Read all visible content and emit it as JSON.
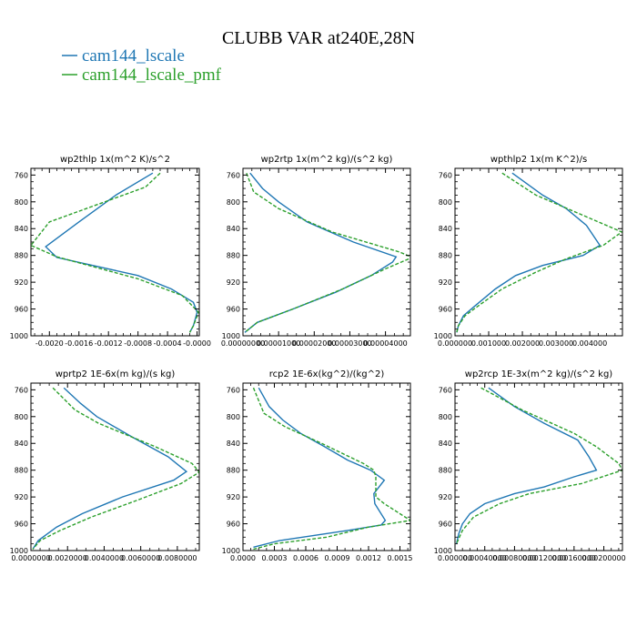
{
  "figure": {
    "title": "CLUBB VAR at240E,28N",
    "series": [
      {
        "name": "cam144_lscale",
        "color": "#1f77b4",
        "dash": "none"
      },
      {
        "name": "cam144_lscale_pmf",
        "color": "#2ca02c",
        "dash": "4,2"
      }
    ]
  },
  "chart_data": [
    {
      "type": "line",
      "title": "wp2thlp   1x(m^2 K)/s^2",
      "xlim": [
        -0.00225,
        3e-05
      ],
      "ylim": [
        1000,
        750
      ],
      "yticks": [
        {
          "v": 760,
          "t": "760"
        },
        {
          "v": 800,
          "t": "800"
        },
        {
          "v": 840,
          "t": "840"
        },
        {
          "v": 880,
          "t": "880"
        },
        {
          "v": 920,
          "t": "920"
        },
        {
          "v": 960,
          "t": "960"
        },
        {
          "v": 1000,
          "t": "1000"
        }
      ],
      "xticks": [
        {
          "v": -0.002,
          "t": "-0.0020"
        },
        {
          "v": -0.0016,
          "t": "-0.0016"
        },
        {
          "v": -0.0012,
          "t": "-0.0012"
        },
        {
          "v": -0.0008,
          "t": "-0.0008"
        },
        {
          "v": -0.0004,
          "t": "-0.0004"
        },
        {
          "v": 0,
          "t": "-0.0000"
        }
      ],
      "series": [
        {
          "y": [
            757,
            790,
            830,
            867,
            883,
            910,
            930,
            950,
            965,
            985,
            995
          ],
          "x": [
            -0.0006,
            -0.0011,
            -0.0016,
            -0.00205,
            -0.0019,
            -0.0008,
            -0.00035,
            -5e-05,
            0.0,
            -5e-05,
            -0.0001
          ]
        },
        {
          "y": [
            757,
            778,
            830,
            865,
            882,
            915,
            940,
            965,
            985,
            995
          ],
          "x": [
            -0.0005,
            -0.0007,
            -0.002,
            -0.00225,
            -0.0019,
            -0.0008,
            -0.0002,
            2e-05,
            -5e-05,
            -0.0001
          ]
        }
      ]
    },
    {
      "type": "line",
      "title": "wp2rtp   1x(m^2 kg)/(s^2 kg)",
      "xlim": [
        0,
        4.7e-05
      ],
      "ylim": [
        1000,
        750
      ],
      "yticks": [
        {
          "v": 760,
          "t": "760"
        },
        {
          "v": 800,
          "t": "800"
        },
        {
          "v": 840,
          "t": "840"
        },
        {
          "v": 880,
          "t": "880"
        },
        {
          "v": 920,
          "t": "920"
        },
        {
          "v": 960,
          "t": "960"
        },
        {
          "v": 1000,
          "t": "1000"
        }
      ],
      "xticks": [
        {
          "v": 0,
          "t": "0.00000000"
        },
        {
          "v": 1e-05,
          "t": "0.00001000"
        },
        {
          "v": 2e-05,
          "t": "0.00002000"
        },
        {
          "v": 3e-05,
          "t": "0.00003000"
        },
        {
          "v": 4e-05,
          "t": "0.00004000"
        }
      ],
      "series": [
        {
          "y": [
            757,
            780,
            800,
            830,
            860,
            882,
            890,
            910,
            935,
            960,
            980,
            995
          ],
          "x": [
            2e-06,
            5.5e-06,
            1e-05,
            1.8e-05,
            3.1e-05,
            4.3e-05,
            4.2e-05,
            3.6e-05,
            2.6e-05,
            1.4e-05,
            4e-06,
            5e-07
          ]
        },
        {
          "y": [
            757,
            785,
            810,
            845,
            875,
            883,
            900,
            930,
            960,
            980,
            995
          ],
          "x": [
            1e-06,
            3e-06,
            1e-05,
            2.5e-05,
            4.4e-05,
            4.75e-05,
            4e-05,
            2.8e-05,
            1.4e-05,
            4e-06,
            5e-07
          ]
        }
      ]
    },
    {
      "type": "line",
      "title": "wpthlp2   1x(m K^2)/s",
      "xlim": [
        0,
        0.00497
      ],
      "ylim": [
        1000,
        750
      ],
      "yticks": [
        {
          "v": 760,
          "t": "760"
        },
        {
          "v": 800,
          "t": "800"
        },
        {
          "v": 840,
          "t": "840"
        },
        {
          "v": 880,
          "t": "880"
        },
        {
          "v": 920,
          "t": "920"
        },
        {
          "v": 960,
          "t": "960"
        },
        {
          "v": 1000,
          "t": "1000"
        }
      ],
      "xticks": [
        {
          "v": 0,
          "t": "0.000000"
        },
        {
          "v": 0.001,
          "t": "0.001000"
        },
        {
          "v": 0.002,
          "t": "0.002000"
        },
        {
          "v": 0.003,
          "t": "0.003000"
        },
        {
          "v": 0.004,
          "t": "0.004000"
        }
      ],
      "series": [
        {
          "y": [
            757,
            790,
            810,
            835,
            865,
            880,
            895,
            910,
            930,
            955,
            970,
            985,
            995
          ],
          "x": [
            0.0017,
            0.0026,
            0.0033,
            0.0039,
            0.0043,
            0.0038,
            0.0026,
            0.0018,
            0.0012,
            0.0006,
            0.00025,
            0.0001,
            5e-05
          ]
        },
        {
          "y": [
            757,
            790,
            845,
            865,
            885,
            905,
            930,
            955,
            970,
            985,
            995
          ],
          "x": [
            0.0014,
            0.0024,
            0.00495,
            0.0044,
            0.0033,
            0.0024,
            0.0014,
            0.0007,
            0.0003,
            0.0001,
            5e-05
          ]
        }
      ]
    },
    {
      "type": "line",
      "title": "wprtp2   1E-6x(m kg)/(s kg)",
      "xlim": [
        0,
        0.0092
      ],
      "ylim": [
        1000,
        750
      ],
      "yticks": [
        {
          "v": 760,
          "t": "760"
        },
        {
          "v": 800,
          "t": "800"
        },
        {
          "v": 840,
          "t": "840"
        },
        {
          "v": 880,
          "t": "880"
        },
        {
          "v": 920,
          "t": "920"
        },
        {
          "v": 960,
          "t": "960"
        },
        {
          "v": 1000,
          "t": "1000"
        }
      ],
      "xticks": [
        {
          "v": 0,
          "t": "0.0000000"
        },
        {
          "v": 0.002,
          "t": "0.0020000"
        },
        {
          "v": 0.004,
          "t": "0.0040000"
        },
        {
          "v": 0.006,
          "t": "0.0060000"
        },
        {
          "v": 0.008,
          "t": "0.0080000"
        }
      ],
      "series": [
        {
          "y": [
            757,
            780,
            800,
            830,
            860,
            882,
            895,
            920,
            945,
            965,
            985,
            998
          ],
          "x": [
            0.0018,
            0.0027,
            0.0036,
            0.0055,
            0.0075,
            0.0085,
            0.0078,
            0.005,
            0.0028,
            0.0014,
            0.0004,
            0.0001
          ]
        },
        {
          "y": [
            757,
            790,
            810,
            845,
            870,
            883,
            900,
            925,
            950,
            970,
            985,
            998
          ],
          "x": [
            0.0012,
            0.0024,
            0.0037,
            0.0068,
            0.0088,
            0.0092,
            0.0082,
            0.0058,
            0.0033,
            0.0016,
            0.0005,
            0.0001
          ]
        }
      ]
    },
    {
      "type": "line",
      "title": "rcp2   1E-6x(kg^2)/(kg^2)",
      "xlim": [
        0,
        0.0016
      ],
      "ylim": [
        1000,
        750
      ],
      "yticks": [
        {
          "v": 760,
          "t": "760"
        },
        {
          "v": 800,
          "t": "800"
        },
        {
          "v": 840,
          "t": "840"
        },
        {
          "v": 880,
          "t": "880"
        },
        {
          "v": 920,
          "t": "920"
        },
        {
          "v": 960,
          "t": "960"
        },
        {
          "v": 1000,
          "t": "1000"
        }
      ],
      "xticks": [
        {
          "v": 0,
          "t": "0.0000"
        },
        {
          "v": 0.0003,
          "t": "0.0003"
        },
        {
          "v": 0.0006,
          "t": "0.0006"
        },
        {
          "v": 0.0009,
          "t": "0.0009"
        },
        {
          "v": 0.0012,
          "t": "0.0012"
        },
        {
          "v": 0.0015,
          "t": "0.0015"
        }
      ],
      "series": [
        {
          "y": [
            757,
            785,
            805,
            825,
            845,
            865,
            880,
            895,
            915,
            930,
            955,
            962,
            970,
            985,
            995
          ],
          "x": [
            0.00015,
            0.00025,
            0.00038,
            0.00055,
            0.00078,
            0.001,
            0.00122,
            0.00135,
            0.00125,
            0.00126,
            0.00136,
            0.00132,
            0.001,
            0.00035,
            0.0001
          ]
        },
        {
          "y": [
            757,
            795,
            815,
            840,
            855,
            870,
            880,
            890,
            920,
            930,
            955,
            965,
            980,
            990,
            998
          ],
          "x": [
            0.0001,
            0.0002,
            0.0004,
            0.00075,
            0.00095,
            0.00115,
            0.00125,
            0.00127,
            0.00127,
            0.00135,
            0.0016,
            0.0012,
            0.0008,
            0.0003,
            0.0001
          ]
        }
      ]
    },
    {
      "type": "line",
      "title": "wp2rcp   1E-3x(m^2 kg)/(s^2 kg)",
      "xlim": [
        0,
        0.00225
      ],
      "ylim": [
        1000,
        750
      ],
      "yticks": [
        {
          "v": 760,
          "t": "760"
        },
        {
          "v": 800,
          "t": "800"
        },
        {
          "v": 840,
          "t": "840"
        },
        {
          "v": 880,
          "t": "880"
        },
        {
          "v": 920,
          "t": "920"
        },
        {
          "v": 960,
          "t": "960"
        },
        {
          "v": 1000,
          "t": "1000"
        }
      ],
      "xticks": [
        {
          "v": 0,
          "t": "0.000000"
        },
        {
          "v": 0.0004,
          "t": "0.00040000"
        },
        {
          "v": 0.0008,
          "t": "0.00080000"
        },
        {
          "v": 0.0012,
          "t": "0.00120000"
        },
        {
          "v": 0.0016,
          "t": "0.00160000"
        },
        {
          "v": 0.002,
          "t": "0.00200000"
        }
      ],
      "series": [
        {
          "y": [
            757,
            785,
            810,
            835,
            860,
            880,
            890,
            905,
            915,
            930,
            945,
            960,
            975,
            990
          ],
          "x": [
            0.00045,
            0.0008,
            0.0012,
            0.00165,
            0.0018,
            0.0019,
            0.0016,
            0.0012,
            0.0008,
            0.0004,
            0.0002,
            0.0001,
            5e-05,
            2e-05
          ]
        },
        {
          "y": [
            757,
            790,
            825,
            845,
            870,
            880,
            900,
            915,
            930,
            950,
            970,
            990
          ],
          "x": [
            0.00035,
            0.0009,
            0.0016,
            0.0019,
            0.0022,
            0.00225,
            0.0017,
            0.001,
            0.0006,
            0.00025,
            0.0001,
            2e-05
          ]
        }
      ]
    }
  ]
}
